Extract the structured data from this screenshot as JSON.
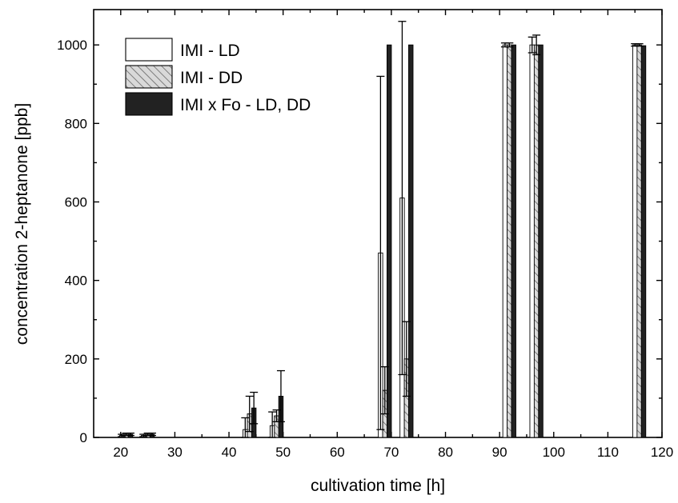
{
  "chart_data": {
    "type": "bar",
    "xlabel": "cultivation time [h]",
    "ylabel": "concentration 2-heptanone [ppb]",
    "xlim": [
      15,
      120
    ],
    "ylim": [
      0,
      1090
    ],
    "xticks": [
      20,
      30,
      40,
      50,
      60,
      70,
      80,
      90,
      100,
      110,
      120
    ],
    "yticks": [
      0,
      200,
      400,
      600,
      800,
      1000
    ],
    "legend_position": "top-left",
    "series": [
      {
        "name": "IMI - LD",
        "fill": "#ffffff",
        "pattern": "none",
        "points": [
          {
            "x": 20.2,
            "y": 5,
            "err": 3
          },
          {
            "x": 24.2,
            "y": 5,
            "err": 3
          },
          {
            "x": 43,
            "y": 20,
            "err": 30
          },
          {
            "x": 48,
            "y": 30,
            "err": 35
          },
          {
            "x": 68,
            "y": 470,
            "err": 450
          },
          {
            "x": 72,
            "y": 610,
            "err": 450
          },
          {
            "x": 91,
            "y": 1000,
            "err": 5
          },
          {
            "x": 96,
            "y": 1000,
            "err": 20
          },
          {
            "x": 115,
            "y": 1000,
            "err": 3
          }
        ]
      },
      {
        "name": "IMI - DD",
        "fill": "#d9d9d9",
        "pattern": "hatch",
        "points": [
          {
            "x": 21,
            "y": 8,
            "err": 3
          },
          {
            "x": 25,
            "y": 8,
            "err": 3
          },
          {
            "x": 43.8,
            "y": 60,
            "err": 45
          },
          {
            "x": 48.8,
            "y": 55,
            "err": 15
          },
          {
            "x": 68.8,
            "y": 120,
            "err": 60
          },
          {
            "x": 72.8,
            "y": 200,
            "err": 95
          },
          {
            "x": 91.8,
            "y": 1000,
            "err": 5
          },
          {
            "x": 96.8,
            "y": 1000,
            "err": 25
          },
          {
            "x": 115.8,
            "y": 1000,
            "err": 3
          }
        ]
      },
      {
        "name": "IMI x Fo - LD, DD",
        "fill": "#222222",
        "pattern": "none",
        "points": [
          {
            "x": 21.8,
            "y": 8,
            "err": 3
          },
          {
            "x": 25.8,
            "y": 8,
            "err": 3
          },
          {
            "x": 44.6,
            "y": 75,
            "err": 40
          },
          {
            "x": 49.6,
            "y": 105,
            "err": 65
          },
          {
            "x": 69.6,
            "y": 1000,
            "err": 0
          },
          {
            "x": 73.6,
            "y": 1000,
            "err": 0
          },
          {
            "x": 92.6,
            "y": 1000,
            "err": 0
          },
          {
            "x": 97.6,
            "y": 1000,
            "err": 0
          },
          {
            "x": 116.6,
            "y": 998,
            "err": 0
          }
        ]
      }
    ]
  }
}
